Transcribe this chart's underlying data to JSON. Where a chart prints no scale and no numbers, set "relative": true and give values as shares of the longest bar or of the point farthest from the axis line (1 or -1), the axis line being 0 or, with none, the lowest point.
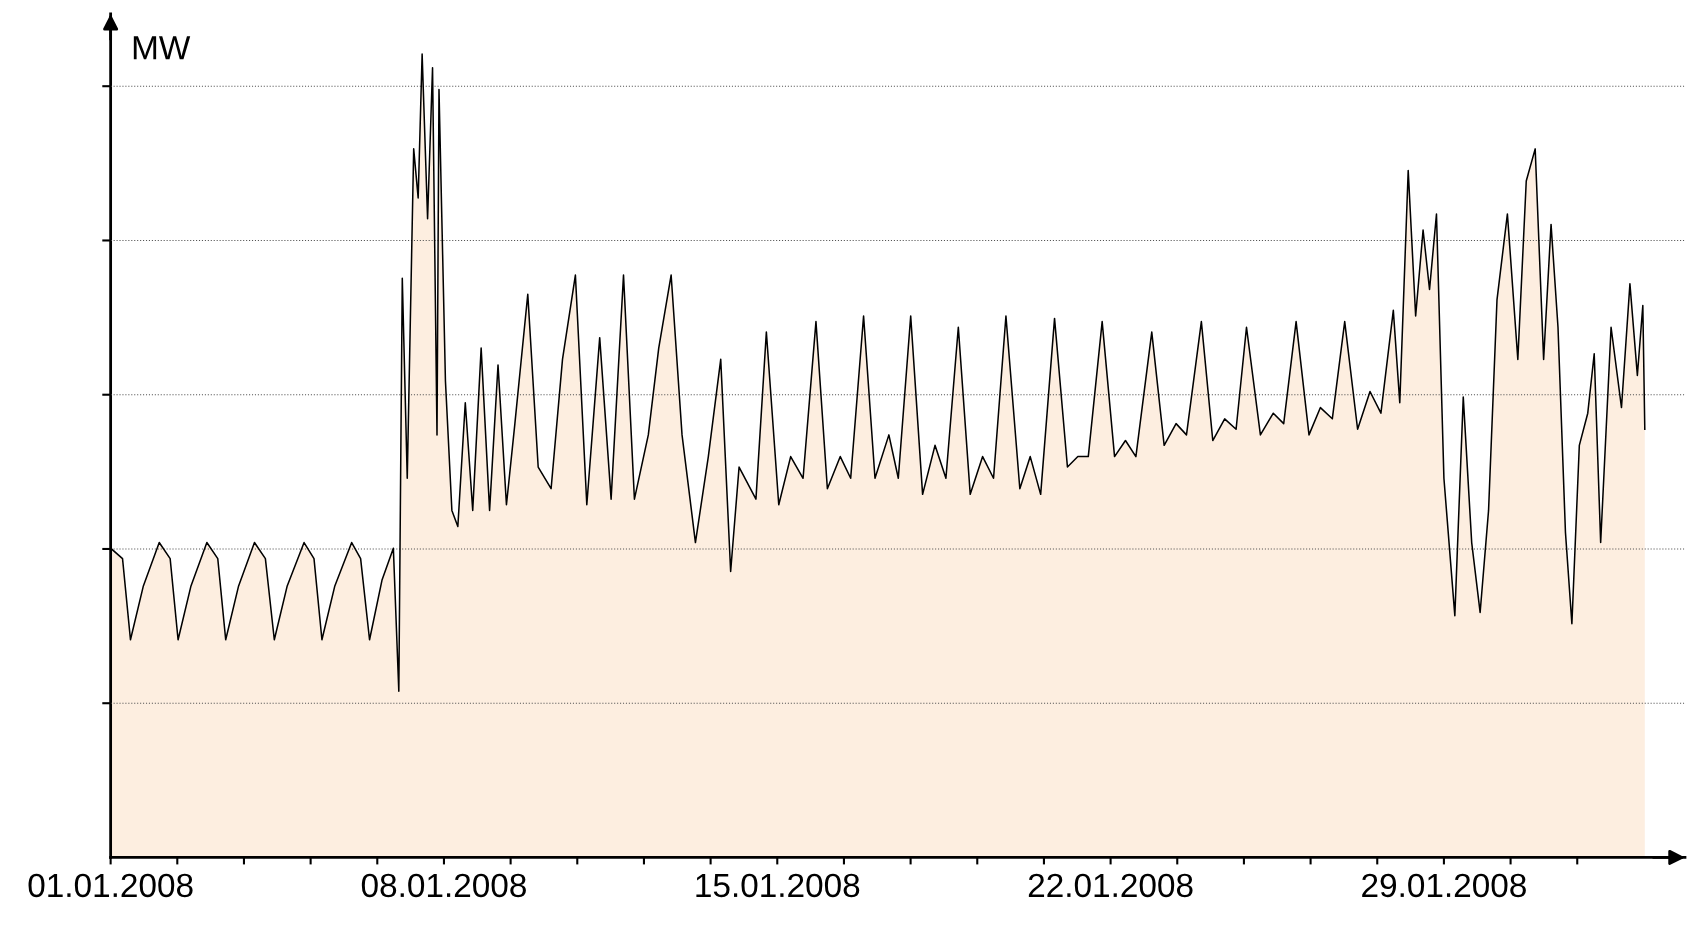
{
  "chart_data": {
    "type": "area",
    "ylabel": "MW",
    "relative": true,
    "grid": "y",
    "legend": false,
    "marker": "none",
    "line_style": "solid",
    "x": [
      "2008-01-01T00:00",
      "2008-01-01T06:00",
      "2008-01-01T10:00",
      "2008-01-01T16:30",
      "2008-01-02T00:30",
      "2008-01-02T06:00",
      "2008-01-02T10:00",
      "2008-01-02T16:30",
      "2008-01-03T00:30",
      "2008-01-03T06:00",
      "2008-01-03T10:00",
      "2008-01-03T16:30",
      "2008-01-04T00:30",
      "2008-01-04T06:00",
      "2008-01-04T10:30",
      "2008-01-04T17:00",
      "2008-01-05T01:30",
      "2008-01-05T06:30",
      "2008-01-05T10:30",
      "2008-01-05T17:00",
      "2008-01-06T01:30",
      "2008-01-06T06:00",
      "2008-01-06T10:30",
      "2008-01-06T16:45",
      "2008-01-06T22:30",
      "2008-01-07T01:15",
      "2008-01-07T03:00",
      "2008-01-07T05:30",
      "2008-01-07T08:45",
      "2008-01-07T11:00",
      "2008-01-07T13:00",
      "2008-01-07T15:45",
      "2008-01-07T18:15",
      "2008-01-07T20:30",
      "2008-01-07T21:30",
      "2008-01-08T00:45",
      "2008-01-08T04:00",
      "2008-01-08T07:00",
      "2008-01-08T10:45",
      "2008-01-08T14:30",
      "2008-01-08T18:45",
      "2008-01-08T23:00",
      "2008-01-09T03:15",
      "2008-01-09T07:30",
      "2008-01-09T11:45",
      "2008-01-09T18:15",
      "2008-01-09T23:30",
      "2008-01-10T06:00",
      "2008-01-10T11:45",
      "2008-01-10T18:15",
      "2008-01-11T00:00",
      "2008-01-11T06:30",
      "2008-01-11T12:15",
      "2008-01-11T18:30",
      "2008-01-12T00:00",
      "2008-01-12T07:00",
      "2008-01-12T12:15",
      "2008-01-12T18:30",
      "2008-01-13T00:00",
      "2008-01-13T06:45",
      "2008-01-13T13:15",
      "2008-01-13T19:30",
      "2008-01-14T00:30",
      "2008-01-14T04:45",
      "2008-01-14T13:15",
      "2008-01-14T18:30",
      "2008-01-15T00:45",
      "2008-01-15T06:45",
      "2008-01-15T13:00",
      "2008-01-15T19:30",
      "2008-01-16T01:15",
      "2008-01-16T07:45",
      "2008-01-16T13:00",
      "2008-01-16T19:30",
      "2008-01-17T01:15",
      "2008-01-17T08:15",
      "2008-01-17T13:00",
      "2008-01-17T19:15",
      "2008-01-18T01:15",
      "2008-01-18T07:30",
      "2008-01-18T13:00",
      "2008-01-18T19:15",
      "2008-01-19T01:15",
      "2008-01-19T07:30",
      "2008-01-19T13:00",
      "2008-01-19T19:15",
      "2008-01-20T02:15",
      "2008-01-20T07:30",
      "2008-01-20T12:45",
      "2008-01-20T19:45",
      "2008-01-21T02:15",
      "2008-01-21T07:30",
      "2008-01-21T12:45",
      "2008-01-21T19:45",
      "2008-01-22T02:00",
      "2008-01-22T07:30",
      "2008-01-22T12:45",
      "2008-01-22T20:45",
      "2008-01-23T03:00",
      "2008-01-23T09:00",
      "2008-01-23T14:15",
      "2008-01-23T21:45",
      "2008-01-24T03:30",
      "2008-01-24T09:30",
      "2008-01-24T15:15",
      "2008-01-24T20:30",
      "2008-01-25T03:30",
      "2008-01-25T10:00",
      "2008-01-25T15:15",
      "2008-01-25T21:30",
      "2008-01-26T04:00",
      "2008-01-26T09:45",
      "2008-01-26T15:45",
      "2008-01-26T22:00",
      "2008-01-27T04:30",
      "2008-01-27T10:45",
      "2008-01-27T16:15",
      "2008-01-27T22:30",
      "2008-01-28T01:45",
      "2008-01-28T06:00",
      "2008-01-28T09:45",
      "2008-01-28T13:30",
      "2008-01-28T16:45",
      "2008-01-28T20:15",
      "2008-01-29T00:00",
      "2008-01-29T05:30",
      "2008-01-29T09:45",
      "2008-01-29T14:00",
      "2008-01-29T18:15",
      "2008-01-29T22:30",
      "2008-01-30T02:45",
      "2008-01-30T08:00",
      "2008-01-30T13:15",
      "2008-01-30T17:30",
      "2008-01-30T22:00",
      "2008-01-31T02:15",
      "2008-01-31T06:00",
      "2008-01-31T09:30",
      "2008-01-31T13:15",
      "2008-01-31T16:30",
      "2008-01-31T20:15",
      "2008-02-01T00:30",
      "2008-02-01T03:45",
      "2008-02-01T07:00",
      "2008-02-01T12:15",
      "2008-02-01T17:30",
      "2008-02-01T21:45",
      "2008-02-02T01:30",
      "2008-02-02T04:15",
      "2008-02-02T05:15"
    ],
    "series": [
      {
        "color": "#fdeee0",
        "values": [
          0.385,
          0.372,
          0.271,
          0.338,
          0.392,
          0.372,
          0.271,
          0.338,
          0.392,
          0.372,
          0.271,
          0.338,
          0.392,
          0.372,
          0.271,
          0.338,
          0.392,
          0.372,
          0.271,
          0.338,
          0.392,
          0.372,
          0.271,
          0.345,
          0.385,
          0.207,
          0.721,
          0.472,
          0.882,
          0.821,
          1.0,
          0.795,
          0.983,
          0.526,
          0.956,
          0.593,
          0.432,
          0.412,
          0.566,
          0.432,
          0.634,
          0.432,
          0.613,
          0.439,
          0.54,
          0.701,
          0.486,
          0.459,
          0.62,
          0.725,
          0.439,
          0.647,
          0.446,
          0.725,
          0.446,
          0.526,
          0.634,
          0.725,
          0.526,
          0.392,
          0.499,
          0.62,
          0.356,
          0.486,
          0.446,
          0.654,
          0.439,
          0.499,
          0.472,
          0.667,
          0.459,
          0.499,
          0.472,
          0.674,
          0.472,
          0.526,
          0.472,
          0.674,
          0.452,
          0.513,
          0.472,
          0.66,
          0.452,
          0.499,
          0.472,
          0.674,
          0.459,
          0.499,
          0.452,
          0.671,
          0.486,
          0.499,
          0.499,
          0.667,
          0.499,
          0.519,
          0.499,
          0.654,
          0.513,
          0.54,
          0.526,
          0.667,
          0.519,
          0.546,
          0.533,
          0.66,
          0.526,
          0.553,
          0.54,
          0.667,
          0.526,
          0.56,
          0.546,
          0.667,
          0.533,
          0.58,
          0.553,
          0.681,
          0.566,
          0.855,
          0.674,
          0.781,
          0.707,
          0.801,
          0.472,
          0.301,
          0.573,
          0.392,
          0.305,
          0.432,
          0.694,
          0.801,
          0.62,
          0.842,
          0.882,
          0.62,
          0.788,
          0.66,
          0.405,
          0.291,
          0.513,
          0.553,
          0.627,
          0.392,
          0.66,
          0.56,
          0.714,
          0.6,
          0.687,
          0.533
        ]
      }
    ],
    "xlim": [
      "2008-01-01",
      "2008-02-03T01:30"
    ],
    "xticks": [
      {
        "value": "2008-01-01",
        "label": "01.01.2008"
      },
      {
        "value": "2008-01-02T09:36",
        "label": null
      },
      {
        "value": "2008-01-03T19:12",
        "label": null
      },
      {
        "value": "2008-01-05T04:48",
        "label": null
      },
      {
        "value": "2008-01-06T14:24",
        "label": null
      },
      {
        "value": "2008-01-08",
        "label": "08.01.2008"
      },
      {
        "value": "2008-01-09T09:36",
        "label": null
      },
      {
        "value": "2008-01-10T19:12",
        "label": null
      },
      {
        "value": "2008-01-12T04:48",
        "label": null
      },
      {
        "value": "2008-01-13T14:24",
        "label": null
      },
      {
        "value": "2008-01-15",
        "label": "15.01.2008"
      },
      {
        "value": "2008-01-16T09:36",
        "label": null
      },
      {
        "value": "2008-01-17T19:12",
        "label": null
      },
      {
        "value": "2008-01-19T04:48",
        "label": null
      },
      {
        "value": "2008-01-20T14:24",
        "label": null
      },
      {
        "value": "2008-01-22",
        "label": "22.01.2008"
      },
      {
        "value": "2008-01-23T09:36",
        "label": null
      },
      {
        "value": "2008-01-24T19:12",
        "label": null
      },
      {
        "value": "2008-01-26T04:48",
        "label": null
      },
      {
        "value": "2008-01-27T14:24",
        "label": null
      },
      {
        "value": "2008-01-29",
        "label": "29.01.2008"
      },
      {
        "value": "2008-01-30T09:36",
        "label": null
      },
      {
        "value": "2008-01-31T19:12",
        "label": null
      }
    ]
  }
}
